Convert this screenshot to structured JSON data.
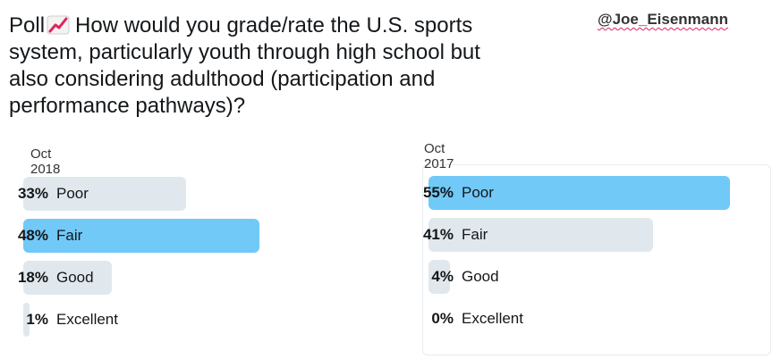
{
  "header": {
    "title_prefix": "Poll",
    "icon": "chart-increasing-icon",
    "title": "How would you grade/rate the U.S. sports system, particularly youth through high school but also considering adulthood (participation and performance pathways)?",
    "handle": "@Joe_Eisenmann"
  },
  "colors": {
    "winner": "#71c9f8",
    "other": "#e1e8ed"
  },
  "chart_data": [
    {
      "type": "bar",
      "title": "Oct 2018",
      "categories": [
        "Poor",
        "Fair",
        "Good",
        "Excellent"
      ],
      "values": [
        33,
        48,
        18,
        1
      ],
      "value_labels": [
        "33%",
        "48%",
        "18%",
        "1%"
      ],
      "unit": "%",
      "winner": "Fair"
    },
    {
      "type": "bar",
      "title": "Oct 2017",
      "categories": [
        "Poor",
        "Fair",
        "Good",
        "Excellent"
      ],
      "values": [
        55,
        41,
        4,
        0
      ],
      "value_labels": [
        "55%",
        "41%",
        "4%",
        "0%"
      ],
      "unit": "%",
      "winner": "Poor"
    }
  ]
}
